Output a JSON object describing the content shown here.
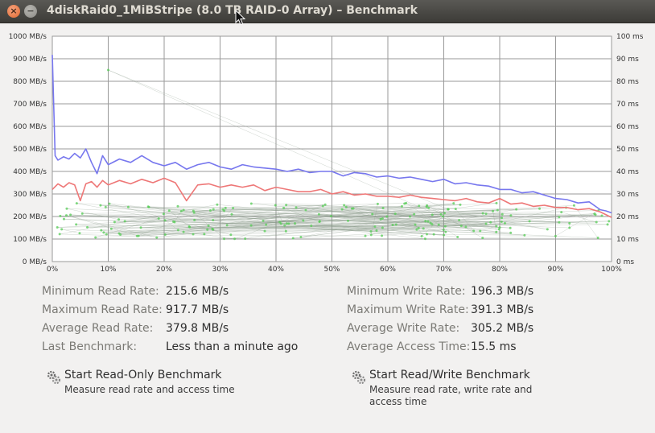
{
  "window": {
    "title": "4diskRaid0_1MiBStripe (8.0 TB RAID-0 Array) – Benchmark",
    "close_glyph": "×",
    "minimize_glyph": "−"
  },
  "chart_data": {
    "type": "line",
    "left_axis": {
      "unit": "MB/s",
      "ticks": [
        "0 MB/s",
        "100 MB/s",
        "200 MB/s",
        "300 MB/s",
        "400 MB/s",
        "500 MB/s",
        "600 MB/s",
        "700 MB/s",
        "800 MB/s",
        "900 MB/s",
        "1000 MB/s"
      ],
      "range": [
        0,
        1000
      ]
    },
    "right_axis": {
      "unit": "ms",
      "ticks": [
        "0 ms",
        "10 ms",
        "20 ms",
        "30 ms",
        "40 ms",
        "50 ms",
        "60 ms",
        "70 ms",
        "80 ms",
        "90 ms",
        "100 ms"
      ],
      "range": [
        0,
        100
      ]
    },
    "x_axis": {
      "ticks": [
        "0%",
        "10%",
        "20%",
        "30%",
        "40%",
        "50%",
        "60%",
        "70%",
        "80%",
        "90%",
        "100%"
      ],
      "range": [
        0,
        100
      ]
    },
    "grid": true,
    "series": [
      {
        "color": "#7777ee",
        "axis": "left",
        "x": [
          0,
          0.5,
          1,
          2,
          3,
          4,
          5,
          6,
          7,
          8,
          9,
          10,
          12,
          14,
          16,
          18,
          20,
          22,
          24,
          26,
          28,
          30,
          32,
          34,
          36,
          38,
          40,
          42,
          44,
          46,
          48,
          50,
          52,
          54,
          56,
          58,
          60,
          62,
          64,
          66,
          68,
          70,
          72,
          74,
          76,
          78,
          80,
          82,
          84,
          86,
          88,
          90,
          92,
          94,
          96,
          98,
          99,
          100
        ],
        "values": [
          917,
          470,
          450,
          465,
          455,
          480,
          460,
          500,
          440,
          390,
          470,
          430,
          455,
          440,
          470,
          440,
          425,
          440,
          410,
          430,
          440,
          420,
          410,
          430,
          420,
          415,
          410,
          400,
          410,
          395,
          400,
          400,
          380,
          395,
          390,
          375,
          380,
          370,
          375,
          365,
          355,
          365,
          345,
          350,
          340,
          335,
          320,
          320,
          305,
          310,
          295,
          280,
          275,
          260,
          265,
          230,
          225,
          216
        ]
      },
      {
        "color": "#ee7777",
        "axis": "left",
        "x": [
          0,
          1,
          2,
          3,
          4,
          5,
          6,
          7,
          8,
          9,
          10,
          12,
          14,
          16,
          18,
          20,
          22,
          24,
          26,
          28,
          30,
          32,
          34,
          36,
          38,
          40,
          42,
          44,
          46,
          48,
          50,
          52,
          54,
          56,
          58,
          60,
          62,
          64,
          66,
          68,
          70,
          72,
          74,
          76,
          78,
          80,
          82,
          84,
          86,
          88,
          90,
          92,
          94,
          96,
          98,
          100
        ],
        "values": [
          320,
          345,
          330,
          350,
          340,
          270,
          345,
          355,
          330,
          360,
          340,
          360,
          345,
          365,
          350,
          370,
          350,
          270,
          340,
          345,
          330,
          340,
          330,
          340,
          315,
          330,
          320,
          310,
          310,
          320,
          300,
          310,
          295,
          300,
          290,
          290,
          285,
          295,
          285,
          280,
          275,
          270,
          280,
          265,
          260,
          280,
          255,
          260,
          245,
          250,
          240,
          240,
          230,
          235,
          220,
          196
        ]
      }
    ],
    "access_time_ms": {
      "color": "#55cc55",
      "count": 200,
      "typical_range": [
        10,
        26
      ],
      "outlier": [
        10,
        85
      ]
    }
  },
  "stats": {
    "left": [
      {
        "label": "Minimum Read Rate:",
        "value": "215.6 MB/s"
      },
      {
        "label": "Maximum Read Rate:",
        "value": "917.7 MB/s"
      },
      {
        "label": "Average Read Rate:",
        "value": "379.8 MB/s"
      },
      {
        "label": "Last Benchmark:",
        "value": "Less than a minute ago"
      }
    ],
    "right": [
      {
        "label": "Minimum Write Rate:",
        "value": "196.3 MB/s"
      },
      {
        "label": "Maximum Write Rate:",
        "value": "391.3 MB/s"
      },
      {
        "label": "Average Write Rate:",
        "value": "305.2 MB/s"
      },
      {
        "label": "Average Access Time:",
        "value": "15.5 ms"
      }
    ]
  },
  "actions": {
    "read_only": {
      "title": "Start Read-Only Benchmark",
      "desc": "Measure read rate and access time",
      "icon": "benchmark-gears-icon"
    },
    "read_write": {
      "title": "Start Read/Write Benchmark",
      "desc": "Measure read rate, write rate and access time",
      "icon": "benchmark-gears-icon"
    }
  }
}
